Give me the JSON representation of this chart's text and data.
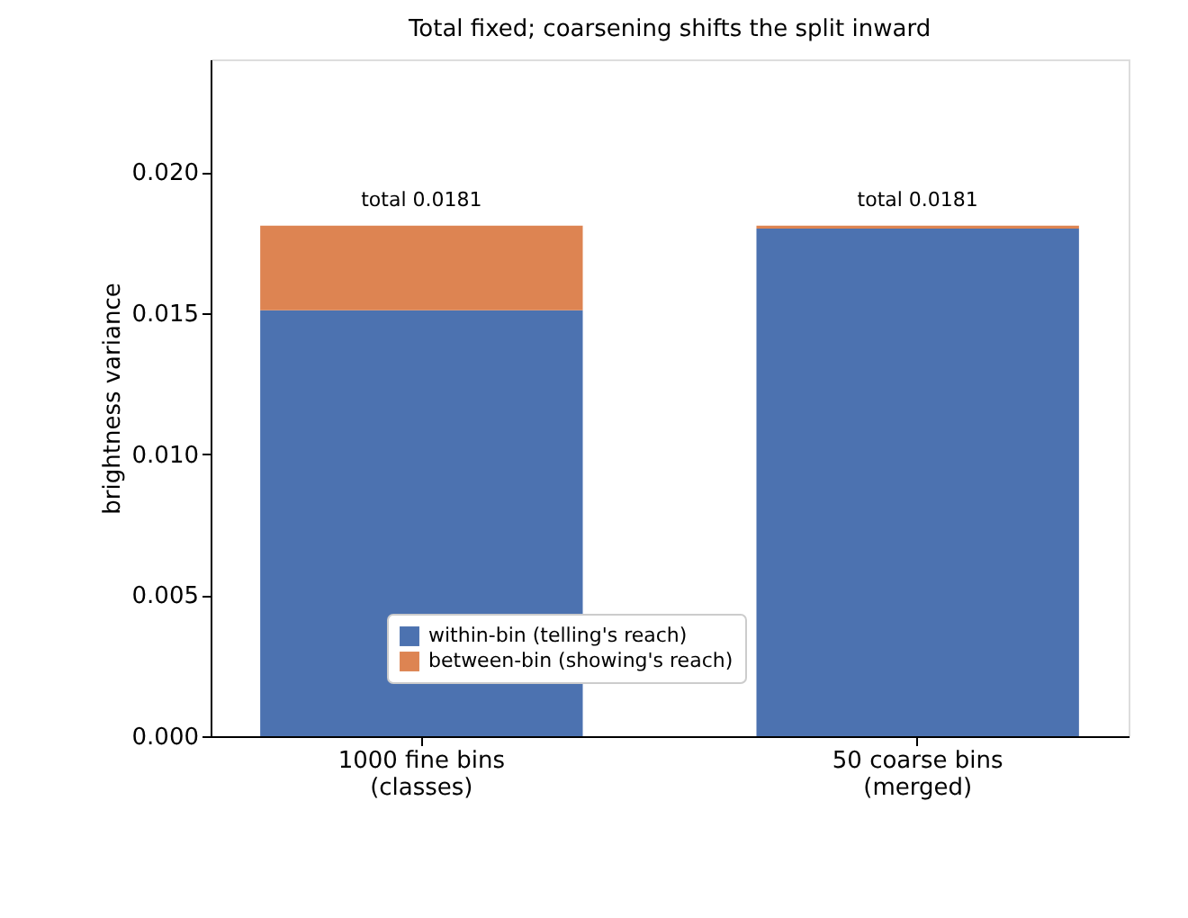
{
  "chart_data": {
    "type": "bar",
    "title": "Total fixed; coarsening shifts the split inward",
    "ylabel": "brightness variance",
    "categories": [
      "1000 fine bins\n(classes)",
      "50 coarse bins\n(merged)"
    ],
    "stacked": true,
    "series": [
      {
        "name": "within-bin (telling's reach)",
        "color": "#4c72b0",
        "values": [
          0.0151,
          0.018
        ]
      },
      {
        "name": "between-bin (showing's reach)",
        "color": "#dd8452",
        "values": [
          0.003,
          0.0001
        ]
      }
    ],
    "totals": [
      "total 0.0181",
      "total 0.0181"
    ],
    "ylim": [
      0,
      0.024
    ],
    "yticks": [
      {
        "value": 0,
        "label": "0.000"
      },
      0.005,
      {
        "value": 0.01,
        "label": "0.010"
      },
      0.015,
      {
        "value": 0.02,
        "label": "0.020"
      }
    ],
    "grid": false,
    "legend": "bottom"
  }
}
